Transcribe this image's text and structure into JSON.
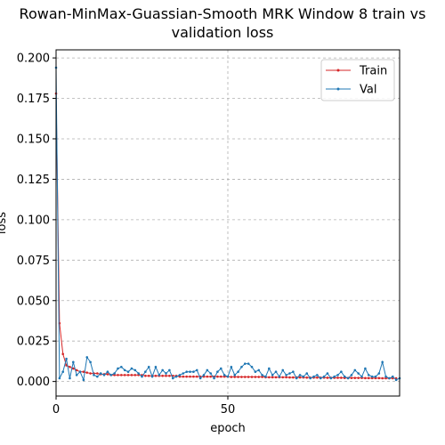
{
  "chart_data": {
    "type": "line",
    "title_line1": "Rowan-MinMax-Guassian-Smooth MRK Window 8 train vs",
    "title_line2": "validation loss",
    "xlabel": "epoch",
    "ylabel": "loss",
    "xlim": [
      0,
      100
    ],
    "ylim": [
      -0.009,
      0.205
    ],
    "x_ticks": [
      0,
      50
    ],
    "y_ticks": [
      "0.000",
      "0.025",
      "0.050",
      "0.075",
      "0.100",
      "0.125",
      "0.150",
      "0.175",
      "0.200"
    ],
    "grid": true,
    "legend_position": "top-right",
    "series": [
      {
        "name": "Train",
        "color": "#d62728",
        "values": [
          0.178,
          0.036,
          0.017,
          0.01,
          0.009,
          0.008,
          0.007,
          0.006,
          0.006,
          0.0055,
          0.005,
          0.005,
          0.005,
          0.0045,
          0.0045,
          0.0045,
          0.004,
          0.004,
          0.004,
          0.004,
          0.004,
          0.004,
          0.004,
          0.004,
          0.004,
          0.004,
          0.0035,
          0.0035,
          0.0035,
          0.0035,
          0.0035,
          0.0035,
          0.0035,
          0.0035,
          0.0035,
          0.0035,
          0.003,
          0.003,
          0.003,
          0.003,
          0.003,
          0.003,
          0.003,
          0.003,
          0.003,
          0.003,
          0.003,
          0.003,
          0.003,
          0.003,
          0.003,
          0.0028,
          0.0028,
          0.0028,
          0.0028,
          0.0028,
          0.0028,
          0.0028,
          0.0028,
          0.0028,
          0.0028,
          0.0026,
          0.0026,
          0.0026,
          0.0026,
          0.0026,
          0.0026,
          0.0026,
          0.0025,
          0.0025,
          0.0025,
          0.0025,
          0.0025,
          0.0024,
          0.0024,
          0.0024,
          0.0024,
          0.0024,
          0.0024,
          0.0023,
          0.0023,
          0.0023,
          0.0023,
          0.0023,
          0.0022,
          0.0022,
          0.0022,
          0.0022,
          0.0022,
          0.0022,
          0.0021,
          0.0021,
          0.0021,
          0.0021,
          0.0021,
          0.002,
          0.002,
          0.002,
          0.002,
          0.002
        ]
      },
      {
        "name": "Val",
        "color": "#1f77b4",
        "values": [
          0.194,
          0.002,
          0.006,
          0.014,
          0.002,
          0.012,
          0.004,
          0.006,
          0.001,
          0.015,
          0.012,
          0.004,
          0.003,
          0.005,
          0.004,
          0.006,
          0.004,
          0.005,
          0.008,
          0.009,
          0.007,
          0.006,
          0.008,
          0.007,
          0.005,
          0.003,
          0.006,
          0.009,
          0.003,
          0.009,
          0.004,
          0.007,
          0.005,
          0.007,
          0.002,
          0.003,
          0.004,
          0.005,
          0.006,
          0.006,
          0.006,
          0.007,
          0.002,
          0.004,
          0.007,
          0.005,
          0.002,
          0.006,
          0.008,
          0.004,
          0.003,
          0.009,
          0.004,
          0.006,
          0.009,
          0.011,
          0.011,
          0.009,
          0.006,
          0.007,
          0.004,
          0.003,
          0.008,
          0.004,
          0.006,
          0.003,
          0.007,
          0.004,
          0.005,
          0.006,
          0.002,
          0.004,
          0.003,
          0.005,
          0.002,
          0.003,
          0.004,
          0.002,
          0.003,
          0.005,
          0.002,
          0.003,
          0.004,
          0.006,
          0.003,
          0.002,
          0.004,
          0.007,
          0.005,
          0.003,
          0.008,
          0.004,
          0.003,
          0.003,
          0.005,
          0.012,
          0.003,
          0.002,
          0.003,
          0.001,
          0.002
        ]
      }
    ]
  }
}
